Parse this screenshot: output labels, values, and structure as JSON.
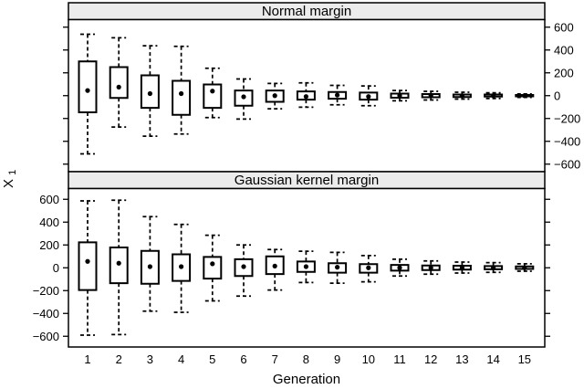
{
  "figure": {
    "xlabel": "Generation",
    "ylabel_base": "X",
    "ylabel_sub": "1",
    "background_color": "#ffffff",
    "line_color": "#000000",
    "strip_fill_color": "#ececec",
    "panel_fill_color": "#ffffff"
  },
  "chart_data": [
    {
      "type": "boxplot",
      "panel": "Normal margin",
      "panel_position": "top",
      "categories": [
        "1",
        "2",
        "3",
        "4",
        "5",
        "6",
        "7",
        "8",
        "9",
        "10",
        "11",
        "12",
        "13",
        "14",
        "15"
      ],
      "xlabel": "Generation",
      "ylabel": "X_1",
      "ylim": [
        -666,
        666
      ],
      "yticks": [
        600,
        400,
        200,
        0,
        -200,
        -400,
        -600
      ],
      "ytick_labels": [
        "600",
        "400",
        "200",
        "0",
        "−200",
        "−400",
        "−600"
      ],
      "ytick_label_side": "right",
      "grid": false,
      "whisker_style": "dashed",
      "median_marker": "filled-dot",
      "stats_order": [
        "whisker_low",
        "q1",
        "median",
        "q3",
        "whisker_high"
      ],
      "stats": [
        [
          -510,
          -146,
          45,
          300,
          538
        ],
        [
          -275,
          -20,
          75,
          250,
          507
        ],
        [
          -355,
          -107,
          18,
          178,
          437
        ],
        [
          -336,
          -168,
          18,
          130,
          432
        ],
        [
          -192,
          -107,
          40,
          98,
          240
        ],
        [
          -205,
          -88,
          -10,
          45,
          146
        ],
        [
          -115,
          -54,
          0,
          45,
          107
        ],
        [
          -101,
          -35,
          -8,
          37,
          112
        ],
        [
          -80,
          -27,
          5,
          32,
          90
        ],
        [
          -88,
          -35,
          -8,
          27,
          85
        ],
        [
          -45,
          -18,
          0,
          18,
          45
        ],
        [
          -38,
          -14,
          0,
          14,
          38
        ],
        [
          -30,
          -12,
          0,
          10,
          30
        ],
        [
          -25,
          -8,
          0,
          10,
          25
        ],
        [
          -15,
          -6,
          0,
          6,
          15
        ]
      ]
    },
    {
      "type": "boxplot",
      "panel": "Gaussian kernel margin",
      "panel_position": "bottom",
      "categories": [
        "1",
        "2",
        "3",
        "4",
        "5",
        "6",
        "7",
        "8",
        "9",
        "10",
        "11",
        "12",
        "13",
        "14",
        "15"
      ],
      "xlabel": "Generation",
      "ylabel": "X_1",
      "ylim": [
        -666,
        666
      ],
      "yticks": [
        600,
        400,
        200,
        0,
        -200,
        -400,
        -600
      ],
      "ytick_labels": [
        "600",
        "400",
        "200",
        "0",
        "−200",
        "−400",
        "−600"
      ],
      "ytick_label_side": "left",
      "grid": false,
      "whisker_style": "dashed",
      "median_marker": "filled-dot",
      "stats_order": [
        "whisker_low",
        "q1",
        "median",
        "q3",
        "whisker_high"
      ],
      "stats": [
        [
          -590,
          -195,
          56,
          223,
          586
        ],
        [
          -585,
          -135,
          40,
          178,
          592
        ],
        [
          -380,
          -140,
          10,
          148,
          448
        ],
        [
          -390,
          -115,
          10,
          118,
          380
        ],
        [
          -290,
          -95,
          35,
          95,
          285
        ],
        [
          -248,
          -72,
          10,
          75,
          200
        ],
        [
          -195,
          -55,
          15,
          100,
          160
        ],
        [
          -129,
          -36,
          10,
          55,
          145
        ],
        [
          -135,
          -43,
          5,
          40,
          135
        ],
        [
          -123,
          -43,
          0,
          32,
          107
        ],
        [
          -72,
          -25,
          0,
          25,
          75
        ],
        [
          -56,
          -20,
          0,
          20,
          60
        ],
        [
          -46,
          -16,
          0,
          18,
          50
        ],
        [
          -40,
          -13,
          0,
          15,
          45
        ],
        [
          -30,
          -10,
          0,
          12,
          35
        ]
      ]
    }
  ]
}
